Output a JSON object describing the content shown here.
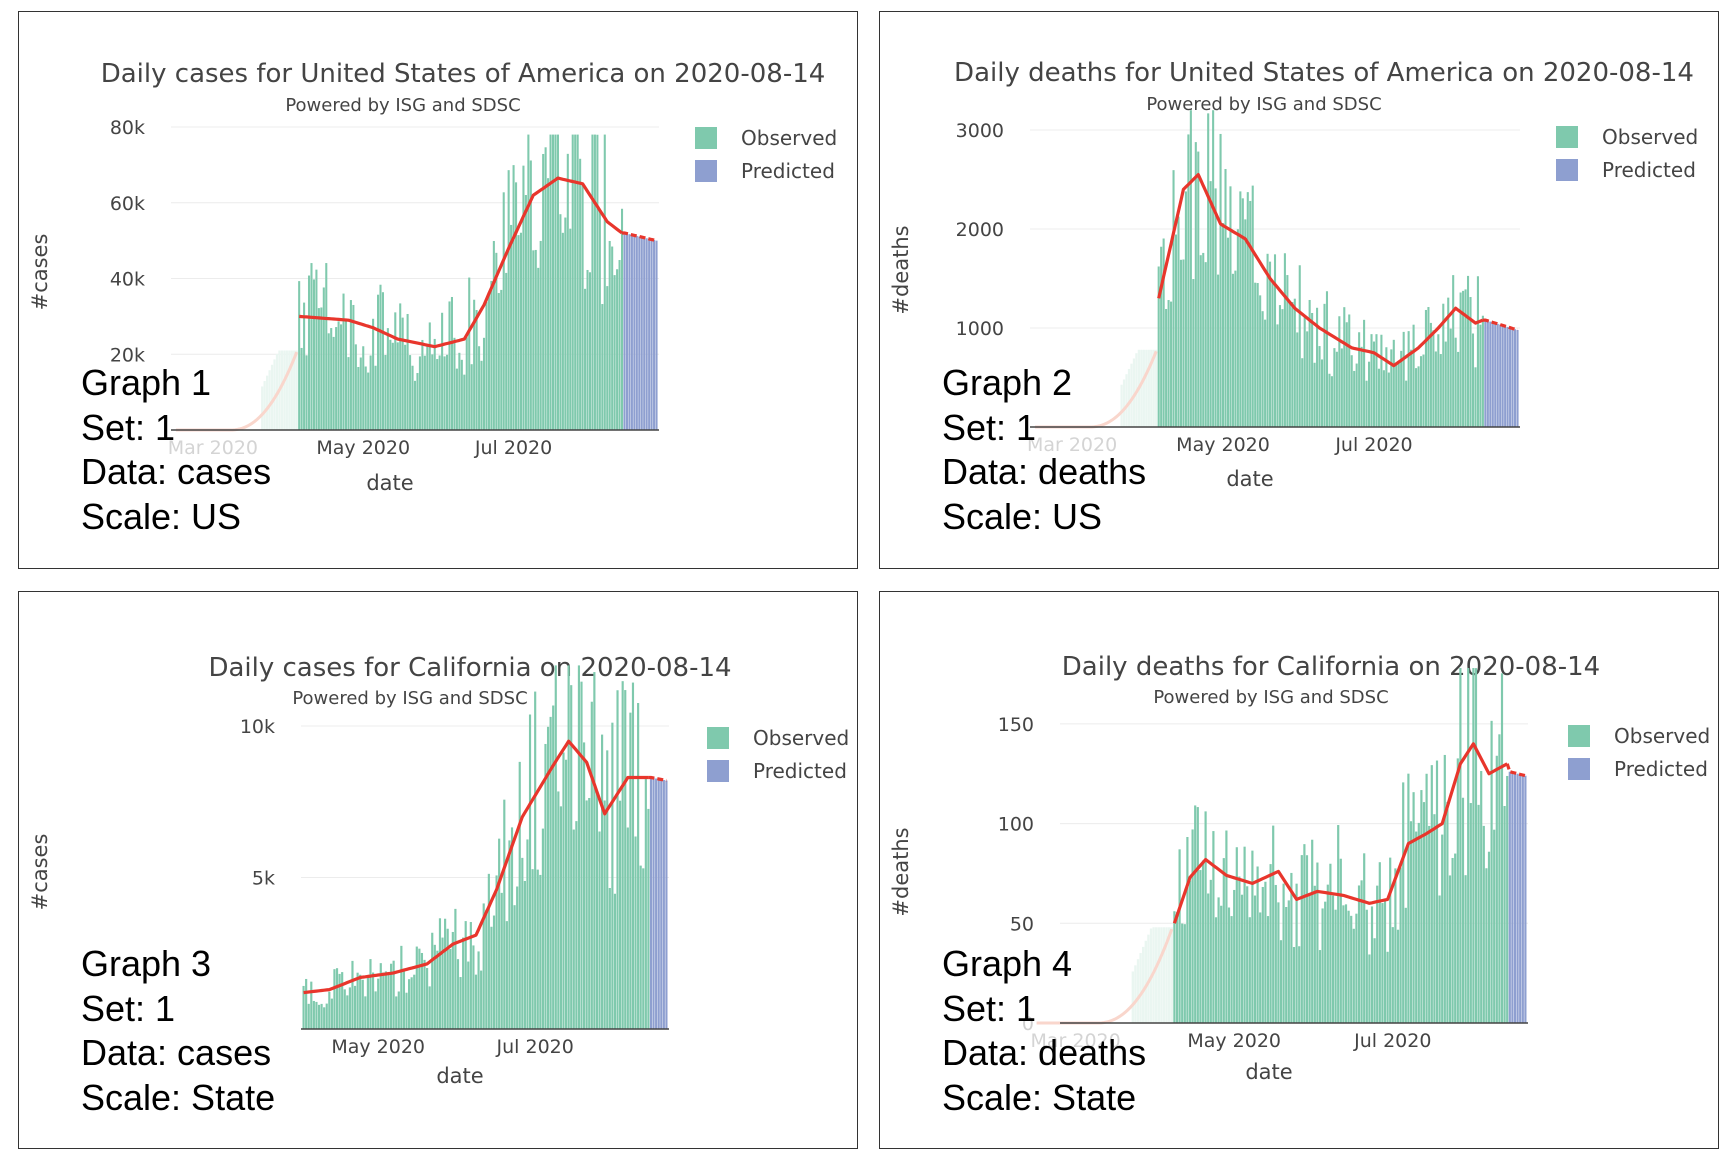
{
  "chart_data": [
    {
      "type": "bar",
      "title": "Daily cases for United States of America on 2020-08-14",
      "subtitle": "Powered by ISG and SDSC",
      "xlabel": "date",
      "ylabel": "#cases",
      "x_ticks": [
        {
          "date": "2020-03-01",
          "label": "Mar 2020",
          "faded": true
        },
        {
          "date": "2020-05-01",
          "label": "May 2020"
        },
        {
          "date": "2020-07-01",
          "label": "Jul 2020"
        }
      ],
      "y_ticks": [
        {
          "value": 20000,
          "label": "20k"
        },
        {
          "value": 40000,
          "label": "40k"
        },
        {
          "value": 60000,
          "label": "60k"
        },
        {
          "value": 80000,
          "label": "80k"
        }
      ],
      "ylim": [
        0,
        80000
      ],
      "legend": [
        {
          "name": "Observed",
          "color": "#7fc9ad"
        },
        {
          "name": "Predicted",
          "color": "#8e9fd0"
        }
      ],
      "legend_position": "top-right",
      "trend_color": "#e8362c",
      "faded_trend_color": "#f9d6cc",
      "lead_in": {
        "start": "2020-02-15",
        "end": "2020-04-04",
        "level": 21000
      },
      "observed": {
        "start": "2020-04-05",
        "end": "2020-08-14",
        "anchors": [
          [
            0,
            30000
          ],
          [
            20,
            29000
          ],
          [
            30,
            27000
          ],
          [
            40,
            24000
          ],
          [
            55,
            22000
          ],
          [
            67,
            24000
          ],
          [
            75,
            33000
          ],
          [
            85,
            48000
          ],
          [
            95,
            62000
          ],
          [
            105,
            66500
          ],
          [
            115,
            65000
          ],
          [
            125,
            55000
          ],
          [
            131,
            52000
          ]
        ],
        "peak": 78000
      },
      "predicted": {
        "start": "2020-08-15",
        "end": "2020-08-28",
        "from": 52000,
        "to": 50000
      },
      "grid": true
    },
    {
      "type": "bar",
      "title": "Daily deaths for United States of America on 2020-08-14",
      "subtitle": "Powered by ISG and SDSC",
      "xlabel": "date",
      "ylabel": "#deaths",
      "x_ticks": [
        {
          "date": "2020-03-01",
          "label": "Mar 2020",
          "faded": true
        },
        {
          "date": "2020-05-01",
          "label": "May 2020"
        },
        {
          "date": "2020-07-01",
          "label": "Jul 2020"
        }
      ],
      "y_ticks": [
        {
          "value": 1000,
          "label": "1000"
        },
        {
          "value": 2000,
          "label": "2000"
        },
        {
          "value": 3000,
          "label": "3000"
        }
      ],
      "ylim": [
        0,
        3000
      ],
      "legend": [
        {
          "name": "Observed",
          "color": "#7fc9ad"
        },
        {
          "name": "Predicted",
          "color": "#8e9fd0"
        }
      ],
      "legend_position": "top-right",
      "trend_color": "#e8362c",
      "faded_trend_color": "#f9d6cc",
      "lead_in": {
        "start": "2020-02-15",
        "end": "2020-04-04",
        "level": 780
      },
      "observed": {
        "start": "2020-04-05",
        "end": "2020-08-14",
        "anchors": [
          [
            0,
            1300
          ],
          [
            10,
            2400
          ],
          [
            16,
            2550
          ],
          [
            25,
            2050
          ],
          [
            35,
            1900
          ],
          [
            45,
            1500
          ],
          [
            55,
            1200
          ],
          [
            65,
            1000
          ],
          [
            78,
            800
          ],
          [
            87,
            750
          ],
          [
            95,
            620
          ],
          [
            105,
            800
          ],
          [
            113,
            1000
          ],
          [
            120,
            1200
          ],
          [
            128,
            1050
          ],
          [
            131,
            1080
          ]
        ],
        "peak": 3200
      },
      "predicted": {
        "start": "2020-08-15",
        "end": "2020-08-28",
        "from": 1080,
        "to": 980
      },
      "grid": true
    },
    {
      "type": "bar",
      "title": "Daily cases for California on 2020-08-14",
      "subtitle": "Powered by ISG and SDSC",
      "xlabel": "date",
      "ylabel": "#cases",
      "x_ticks": [
        {
          "date": "2020-05-01",
          "label": "May 2020"
        },
        {
          "date": "2020-07-01",
          "label": "Jul 2020"
        }
      ],
      "y_ticks": [
        {
          "value": 5000,
          "label": "5k"
        },
        {
          "value": 10000,
          "label": "10k"
        }
      ],
      "ylim": [
        0,
        10000
      ],
      "legend": [
        {
          "name": "Observed",
          "color": "#7fc9ad"
        },
        {
          "name": "Predicted",
          "color": "#8e9fd0"
        }
      ],
      "legend_position": "top-right",
      "trend_color": "#e8362c",
      "faded_trend_color": "#f9d6cc",
      "lead_in": null,
      "observed": {
        "start": "2020-04-02",
        "end": "2020-08-14",
        "anchors": [
          [
            0,
            1200
          ],
          [
            10,
            1300
          ],
          [
            22,
            1700
          ],
          [
            35,
            1850
          ],
          [
            48,
            2150
          ],
          [
            58,
            2800
          ],
          [
            67,
            3100
          ],
          [
            75,
            4600
          ],
          [
            85,
            7000
          ],
          [
            97,
            8700
          ],
          [
            103,
            9500
          ],
          [
            110,
            8800
          ],
          [
            117,
            7100
          ],
          [
            126,
            8300
          ],
          [
            134,
            8300
          ]
        ],
        "peak": 12000
      },
      "predicted": {
        "start": "2020-08-15",
        "end": "2020-08-21",
        "from": 8300,
        "to": 8200
      },
      "grid": true
    },
    {
      "type": "bar",
      "title": "Daily deaths for California on 2020-08-14",
      "subtitle": "Powered by ISG and SDSC",
      "xlabel": "date",
      "ylabel": "#deaths",
      "x_ticks": [
        {
          "date": "2020-03-01",
          "label": "Mar 2020",
          "faded": true
        },
        {
          "date": "2020-05-01",
          "label": "May 2020"
        },
        {
          "date": "2020-07-01",
          "label": "Jul 2020"
        }
      ],
      "y_ticks": [
        {
          "value": 0,
          "label": "0",
          "faded": true
        },
        {
          "value": 50,
          "label": "50"
        },
        {
          "value": 100,
          "label": "100"
        },
        {
          "value": 150,
          "label": "150"
        }
      ],
      "ylim": [
        0,
        175
      ],
      "legend": [
        {
          "name": "Observed",
          "color": "#7fc9ad"
        },
        {
          "name": "Predicted",
          "color": "#8e9fd0"
        }
      ],
      "legend_position": "top-right",
      "trend_color": "#e8362c",
      "faded_trend_color": "#f9d6cc",
      "lead_in": {
        "start": "2020-02-15",
        "end": "2020-04-07",
        "level": 48
      },
      "observed": {
        "start": "2020-04-08",
        "end": "2020-08-14",
        "anchors": [
          [
            0,
            50
          ],
          [
            6,
            73
          ],
          [
            12,
            82
          ],
          [
            20,
            74
          ],
          [
            30,
            70
          ],
          [
            40,
            76
          ],
          [
            47,
            62
          ],
          [
            55,
            66
          ],
          [
            65,
            64
          ],
          [
            75,
            60
          ],
          [
            82,
            62
          ],
          [
            90,
            90
          ],
          [
            97,
            95
          ],
          [
            103,
            100
          ],
          [
            110,
            130
          ],
          [
            115,
            140
          ],
          [
            121,
            125
          ],
          [
            128,
            130
          ]
        ],
        "peak": 178
      },
      "predicted": {
        "start": "2020-08-15",
        "end": "2020-08-21",
        "from": 126,
        "to": 124
      },
      "grid": true
    }
  ],
  "annotations": [
    {
      "graph": "Graph 1",
      "set": "Set: 1",
      "data": "Data: cases",
      "scale": "Scale: US"
    },
    {
      "graph": "Graph 2",
      "set": "Set: 1",
      "data": "Data: deaths",
      "scale": "Scale: US"
    },
    {
      "graph": "Graph 3",
      "set": "Set: 1",
      "data": "Data: cases",
      "scale": "Scale: State"
    },
    {
      "graph": "Graph 4",
      "set": "Set: 1",
      "data": "Data: deaths",
      "scale": "Scale: State"
    }
  ]
}
